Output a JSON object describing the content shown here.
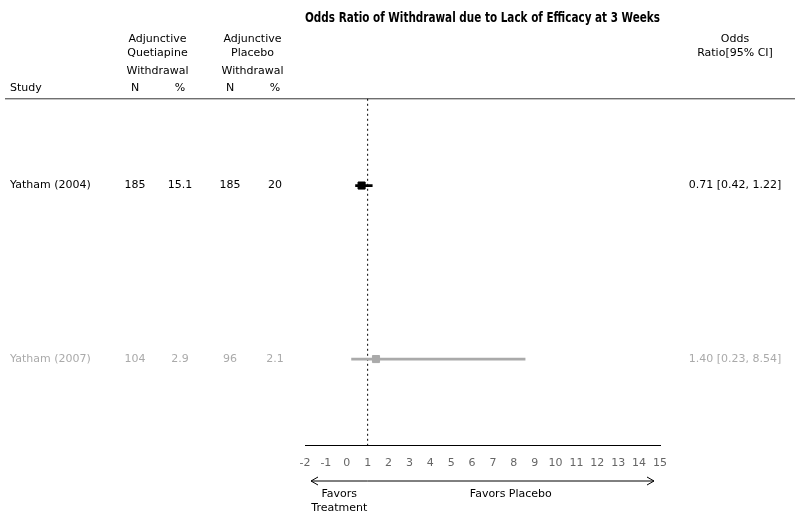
{
  "chart_data": {
    "type": "forest",
    "title": "Odds Ratio of Withdrawal due to Lack of Efficacy at 3 Weeks",
    "categories": [
      "Yatham (2004)",
      "Yatham (2007)"
    ],
    "values": [
      0.71,
      1.4
    ],
    "ci_lo": [
      0.42,
      0.23
    ],
    "ci_hi": [
      1.22,
      8.54
    ],
    "value_labels": [
      "0.71 [0.42, 1.22]",
      "1.40 [0.23, 8.54]"
    ],
    "colors": [
      "#000000",
      "#aaaaaa"
    ],
    "marker": "square",
    "treatment_n": [
      185,
      104
    ],
    "treatment_pct": [
      15.1,
      2.9
    ],
    "control_n": [
      185,
      96
    ],
    "control_pct": [
      20,
      2.1
    ],
    "column_headers": {
      "study": "Study",
      "groups": [
        "Adjunctive\nQuetiapine",
        "Adjunctive\nPlacebo"
      ],
      "withdrawal": "Withdrawal",
      "n": "N",
      "pct": "%",
      "odds_ratio": "Odds\nRatio[95% CI]"
    },
    "reference_line": 1,
    "direction_labels": [
      "Favors\nTreatment",
      "Favors Placebo"
    ],
    "xlim": [
      -2,
      15
    ],
    "xticks": [
      -2,
      -1,
      0,
      1,
      2,
      3,
      4,
      5,
      6,
      7,
      8,
      9,
      10,
      11,
      12,
      13,
      14,
      15
    ],
    "grid": false
  }
}
